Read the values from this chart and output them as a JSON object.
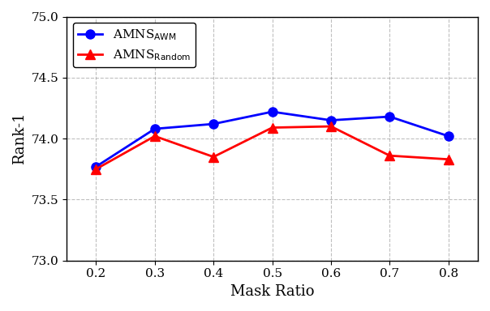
{
  "x": [
    0.2,
    0.3,
    0.4,
    0.5,
    0.6,
    0.7,
    0.8
  ],
  "awm_y": [
    73.77,
    74.08,
    74.12,
    74.22,
    74.15,
    74.18,
    74.02
  ],
  "random_y": [
    73.75,
    74.02,
    73.85,
    74.09,
    74.1,
    73.86,
    73.83
  ],
  "awm_color": "#0000ff",
  "random_color": "#ff0000",
  "awm_label": "AMNS$_{\\mathrm{AWM}}$",
  "random_label": "AMNS$_{\\mathrm{Random}}$",
  "xlabel": "Mask Ratio",
  "ylabel": "Rank-1",
  "ylim": [
    73.0,
    75.0
  ],
  "xlim": [
    0.15,
    0.85
  ],
  "yticks": [
    73.0,
    73.5,
    74.0,
    74.5,
    75.0
  ],
  "xticks": [
    0.2,
    0.3,
    0.4,
    0.5,
    0.6,
    0.7,
    0.8
  ],
  "figsize": [
    6.04,
    3.84
  ],
  "dpi": 100
}
